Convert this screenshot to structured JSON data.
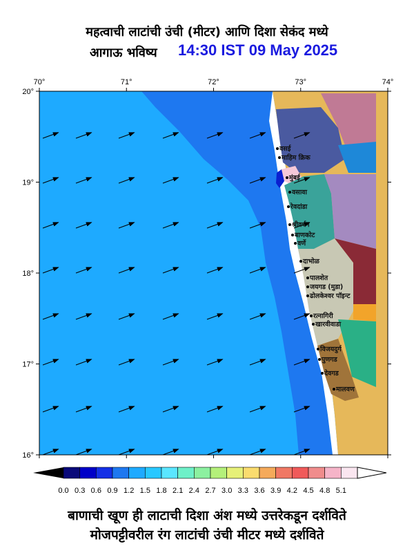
{
  "title": {
    "line1": "महत्वाची लाटांची उंची (मीटर) आणि दिशा सेकंद मध्ये",
    "line2_prefix": "आगाऊ भविष्य",
    "timestamp": "14:30 IST 09 May 2025"
  },
  "axes": {
    "lon_ticks": [
      "70°",
      "71°",
      "72°",
      "73°",
      "74°"
    ],
    "lat_ticks": [
      "20°",
      "19°",
      "18°",
      "17°",
      "16°"
    ]
  },
  "places": [
    "वसई",
    "माहिम क्रिक",
    "मुंबई",
    "वसावा",
    "रेवदांडा",
    "श्रीवर्धन",
    "बाणकोट",
    "वर्णे",
    "दाभोळ",
    "पालशेत",
    "जयगड (मुडा)",
    "ढोलकेश्वर पॉइन्ट",
    "रत्नागिरी",
    "खारवीवाडा",
    "विजयदुर्ग",
    "पुणगड",
    "देवगड",
    "मालवण"
  ],
  "colorbar": {
    "labels": [
      "0.0",
      "0.3",
      "0.6",
      "0.9",
      "1.2",
      "1.5",
      "1.8",
      "2.1",
      "2.4",
      "2.7",
      "3.0",
      "3.3",
      "3.6",
      "3.9",
      "4.2",
      "4.5",
      "4.8",
      "5.1"
    ],
    "colors": [
      "#0a0a7a",
      "#0000c8",
      "#1430e6",
      "#1e78f0",
      "#1eaaff",
      "#28c8ff",
      "#5ae6ff",
      "#6ef0c8",
      "#8cf0a0",
      "#b4f07a",
      "#e6f078",
      "#fadc6e",
      "#f5aa5a",
      "#f07864",
      "#f05a5a",
      "#f08c8c",
      "#f5b4c8",
      "#fae6f0"
    ]
  },
  "footer": {
    "line1": "बाणाची खूण ही लाटाची दिशा अंश मध्ये उत्तरेकडून दर्शविते",
    "line2": "मोजपट्टीवरील रंग लाटांची उंची मीटर मध्ये दर्शविते"
  },
  "wave_direction_deg": 250,
  "colors": {
    "sea_main": "#1eaaff",
    "sea_shallow": "#1e78f0",
    "land": "#e6b85a",
    "title_time": "#1a1adf"
  }
}
